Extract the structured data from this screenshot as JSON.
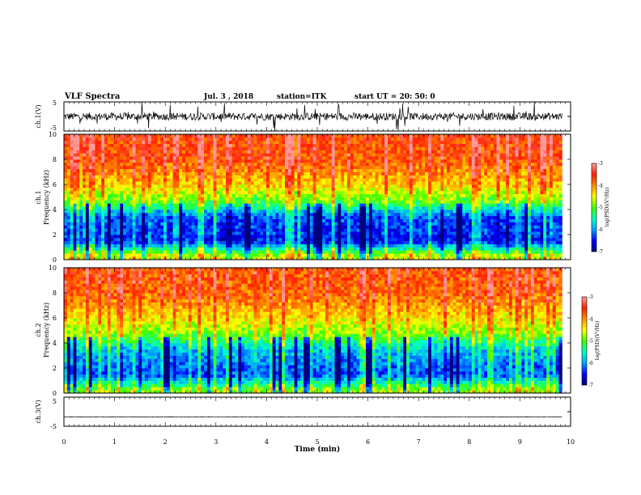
{
  "header": {
    "title": "VLF Spectra",
    "date": "Jul.  3  , 2018",
    "station": "station=ITK",
    "start": "start  UT =   20: 50: 0"
  },
  "chart_data": [
    {
      "type": "line",
      "panel": "ch1-waveform",
      "ylabel": "ch.1(V)",
      "ylim": [
        -5,
        5
      ],
      "yticks": [
        "5",
        "-5"
      ],
      "xlim": [
        0,
        10
      ],
      "baseline": 0,
      "amplitude": 1.3,
      "end_x": 9.83
    },
    {
      "type": "heatmap",
      "panel": "ch1-spectrogram",
      "ylabel": [
        "ch.1",
        "Frequency  (kHz)"
      ],
      "ylim": [
        0,
        10
      ],
      "yticks": [
        "0",
        "2",
        "4",
        "6",
        "8",
        "10"
      ],
      "xlim": [
        0,
        10
      ],
      "end_x": 9.83,
      "band_levels_kHz_log10PSD": [
        [
          0.3,
          -4.6
        ],
        [
          1.5,
          -6.5
        ],
        [
          3.5,
          -6.2
        ],
        [
          4.5,
          -5.1
        ],
        [
          6.0,
          -4.3
        ],
        [
          8.0,
          -3.7
        ],
        [
          10.0,
          -3.6
        ]
      ],
      "colorbar": {
        "label": "log(PSD)(V²/Hz)",
        "range": [
          -7,
          -3
        ],
        "ticks": [
          "-3",
          "-4",
          "-5",
          "-6",
          "-7"
        ]
      }
    },
    {
      "type": "heatmap",
      "panel": "ch2-spectrogram",
      "ylabel": [
        "ch.2",
        "Frequency  (kHz)"
      ],
      "ylim": [
        0,
        10
      ],
      "yticks": [
        "0",
        "2",
        "4",
        "6",
        "8",
        "10"
      ],
      "xlim": [
        0,
        10
      ],
      "end_x": 9.83,
      "band_levels_kHz_log10PSD": [
        [
          0.3,
          -4.8
        ],
        [
          1.5,
          -6.3
        ],
        [
          3.5,
          -5.8
        ],
        [
          4.5,
          -5.0
        ],
        [
          6.0,
          -4.4
        ],
        [
          8.0,
          -3.8
        ],
        [
          10.0,
          -3.7
        ]
      ],
      "colorbar": {
        "label": "log(PSD)(V²/Hz)",
        "range": [
          -7,
          -3
        ],
        "ticks": [
          "-3",
          "-4",
          "-5",
          "-6",
          "-7"
        ]
      }
    },
    {
      "type": "line",
      "panel": "ch3-waveform",
      "ylabel": "ch.3(V)",
      "ylim": [
        -5,
        5
      ],
      "yticks": [
        "5",
        "-5"
      ],
      "xlim": [
        0,
        10
      ],
      "baseline": -1.8,
      "amplitude": 0.1,
      "end_x": 9.83,
      "xlabel": "Time  (min)",
      "xticks": [
        "0",
        "1",
        "2",
        "3",
        "4",
        "5",
        "6",
        "7",
        "8",
        "9",
        "10"
      ]
    }
  ],
  "colors": {
    "colormap": [
      "#00007a",
      "#0000ff",
      "#00a0ff",
      "#00ffc8",
      "#40ff00",
      "#ffff00",
      "#ff9000",
      "#ff2000",
      "#ff9999"
    ],
    "axis": "#000000",
    "trace": "#000000"
  }
}
